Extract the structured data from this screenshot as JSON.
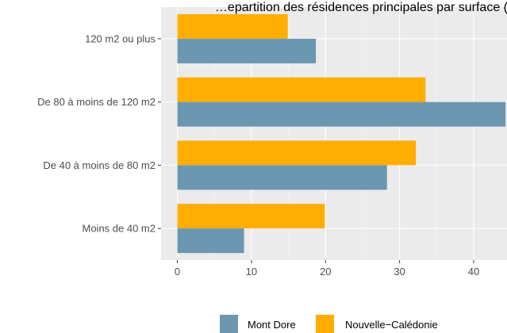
{
  "chart_data": {
    "type": "bar",
    "orientation": "horizontal",
    "title": "…epartition des résidences principales par surface (",
    "categories": [
      "Moins de 40 m2",
      "De 40 à moins de 80 m2",
      "De 80 à moins de 120 m2",
      "120 m2 ou plus"
    ],
    "series": [
      {
        "name": "Mont Dore",
        "values": [
          9,
          28.3,
          44.3,
          18.7
        ],
        "color": "#6b97b0"
      },
      {
        "name": "Nouvelle−Calédonie",
        "values": [
          19.9,
          32.2,
          33.5,
          14.9
        ],
        "color": "#ffad00"
      }
    ],
    "xlim": [
      -2.2,
      44.5
    ],
    "xticks": [
      0,
      10,
      20,
      30,
      40
    ],
    "grid": true,
    "legend_position": "bottom",
    "panel_background": "#ebebeb",
    "grid_color": "#ffffff"
  },
  "legend": {
    "items": [
      {
        "label": "Mont Dore"
      },
      {
        "label": "Nouvelle−Calédonie"
      }
    ]
  }
}
